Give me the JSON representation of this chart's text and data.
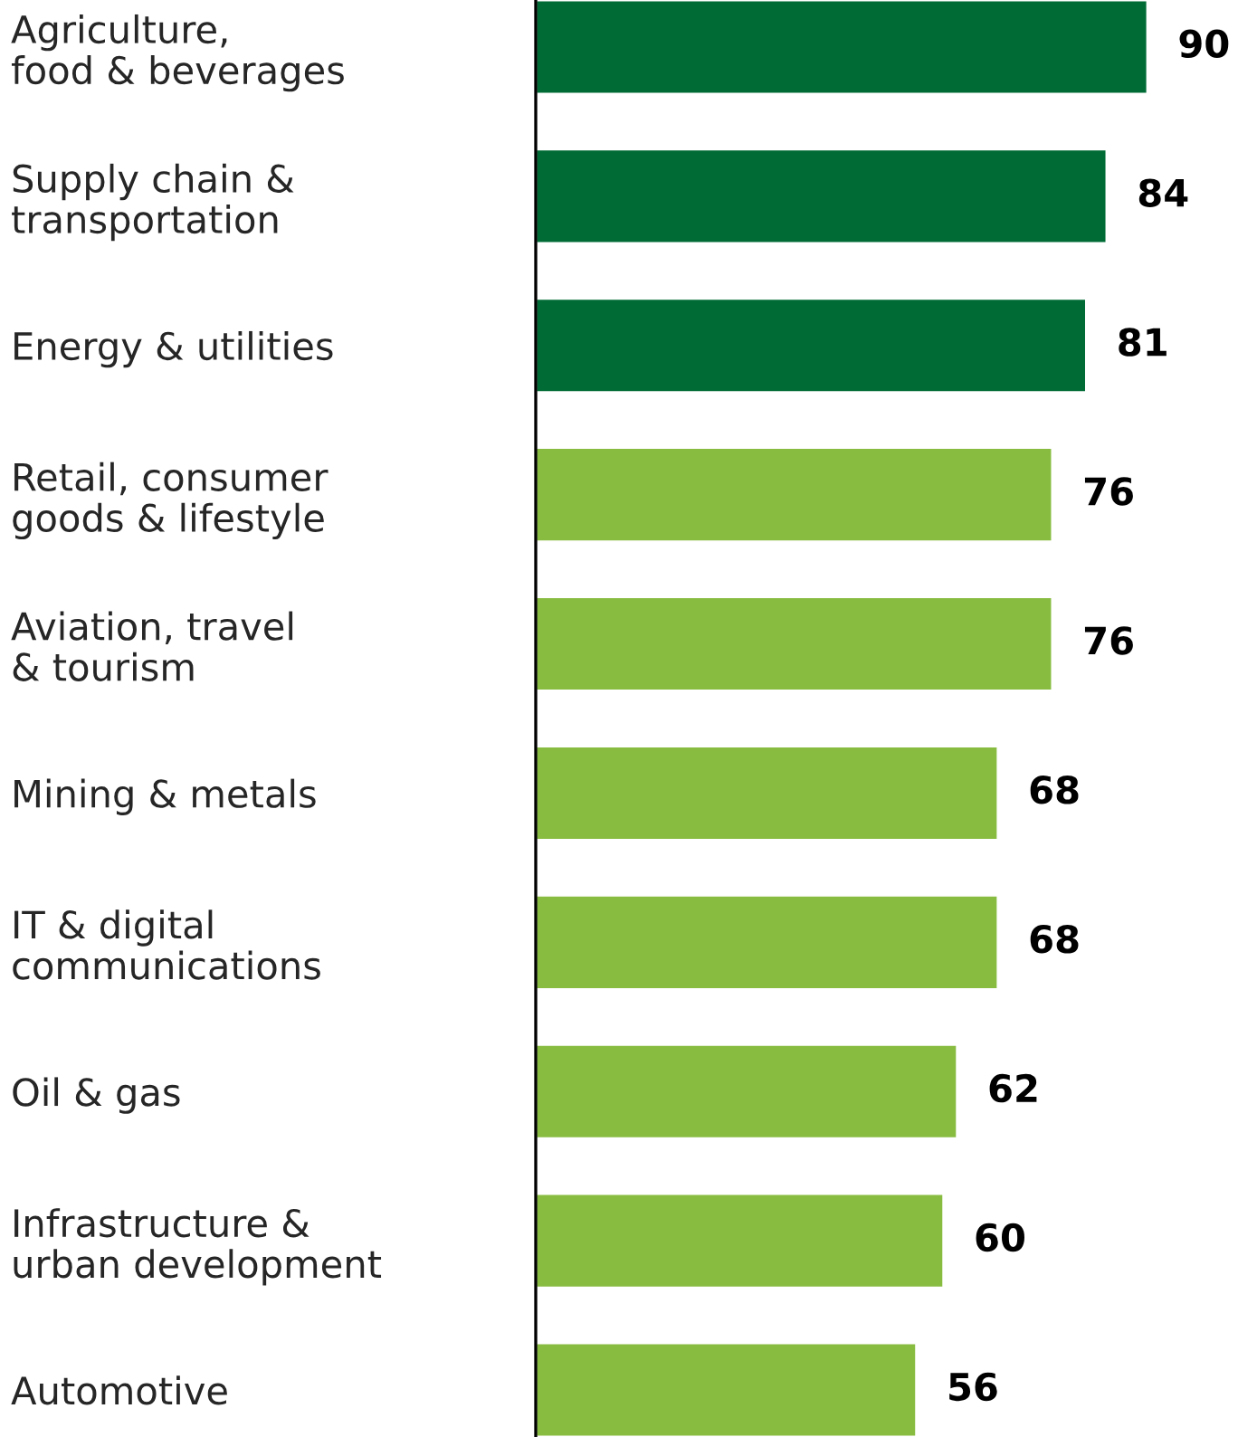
{
  "chart_data": {
    "type": "bar",
    "orientation": "horizontal",
    "categories": [
      "Agriculture,\nfood & beverages",
      "Supply chain &\ntransportation",
      "Energy & utilities",
      "Retail, consumer\ngoods & lifestyle",
      "Aviation, travel\n& tourism",
      "Mining & metals",
      "IT & digital\ncommunications",
      "Oil & gas",
      "Infrastructure &\nurban development",
      "Automotive"
    ],
    "values": [
      90,
      84,
      81,
      76,
      76,
      68,
      68,
      62,
      60,
      56
    ],
    "colors": [
      "#006b35",
      "#006b35",
      "#006b35",
      "#88bc41",
      "#88bc41",
      "#88bc41",
      "#88bc41",
      "#88bc41",
      "#88bc41",
      "#88bc41"
    ],
    "data_labels": true,
    "tick_labels": "y",
    "grid": false,
    "legend": false
  }
}
